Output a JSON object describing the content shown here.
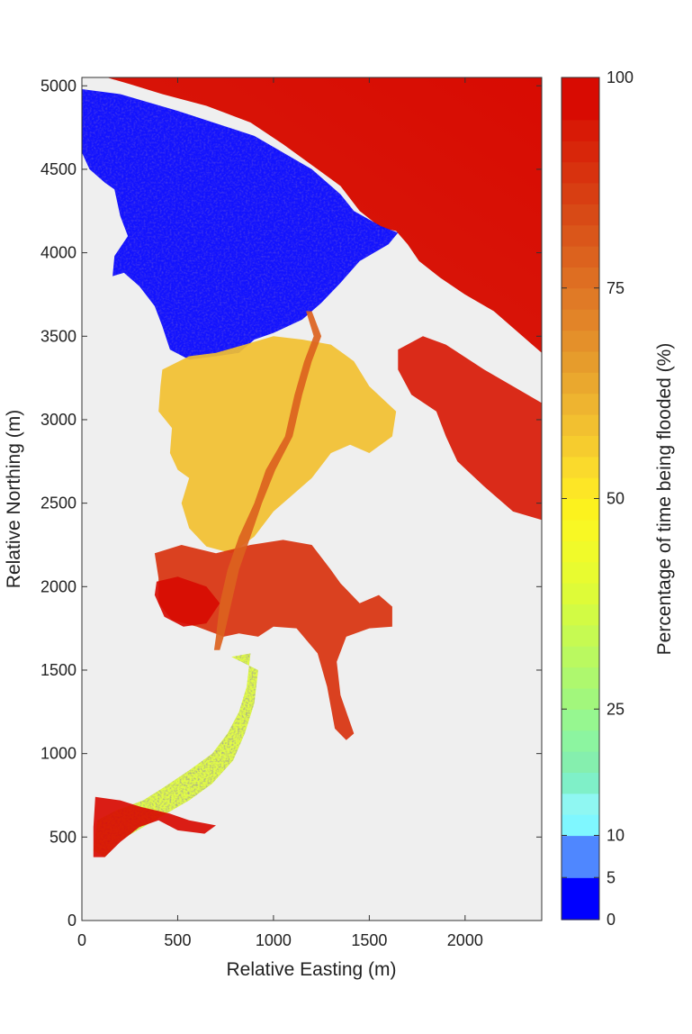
{
  "chart_data": {
    "type": "heatmap",
    "title": "",
    "xlabel": "Relative Easting (m)",
    "ylabel": "Relative Northing (m)",
    "xlim": [
      0,
      2400
    ],
    "ylim": [
      0,
      5050
    ],
    "xticks": [
      0,
      500,
      1000,
      1500,
      2000
    ],
    "yticks": [
      0,
      500,
      1000,
      1500,
      2000,
      2500,
      3000,
      3500,
      4000,
      4500,
      5000
    ],
    "grid": false,
    "background_color": "#efefef",
    "colorbar": {
      "label": "Percentage of time being flooded (%)",
      "range": [
        0,
        100
      ],
      "tick_values": [
        0,
        5,
        10,
        25,
        50,
        75,
        100
      ],
      "levels": [
        {
          "from": 0,
          "to": 5,
          "color": "#0000ff"
        },
        {
          "from": 5,
          "to": 10,
          "color": "#4f87ff"
        },
        {
          "from": 10,
          "to": 12.5,
          "color": "#7ff7ff"
        },
        {
          "from": 12.5,
          "to": 15,
          "color": "#8ff7f2"
        },
        {
          "from": 15,
          "to": 17.5,
          "color": "#7ff0c8"
        },
        {
          "from": 17.5,
          "to": 20,
          "color": "#85efae"
        },
        {
          "from": 20,
          "to": 22.5,
          "color": "#8cf5a0"
        },
        {
          "from": 22.5,
          "to": 25,
          "color": "#96f790"
        },
        {
          "from": 25,
          "to": 27.5,
          "color": "#a2f77c"
        },
        {
          "from": 27.5,
          "to": 30,
          "color": "#aef86e"
        },
        {
          "from": 30,
          "to": 32.5,
          "color": "#baf960"
        },
        {
          "from": 32.5,
          "to": 35,
          "color": "#c6fa52"
        },
        {
          "from": 35,
          "to": 37.5,
          "color": "#d2fb44"
        },
        {
          "from": 37.5,
          "to": 40,
          "color": "#defb38"
        },
        {
          "from": 40,
          "to": 42.5,
          "color": "#e8fb30"
        },
        {
          "from": 42.5,
          "to": 45,
          "color": "#f0fa2a"
        },
        {
          "from": 45,
          "to": 47.5,
          "color": "#f8f824"
        },
        {
          "from": 47.5,
          "to": 50,
          "color": "#fcf21e"
        },
        {
          "from": 50,
          "to": 52.5,
          "color": "#fde626"
        },
        {
          "from": 52.5,
          "to": 55,
          "color": "#fada2c"
        },
        {
          "from": 55,
          "to": 57.5,
          "color": "#f6cc2e"
        },
        {
          "from": 57.5,
          "to": 60,
          "color": "#f2c030"
        },
        {
          "from": 60,
          "to": 62.5,
          "color": "#eeb430"
        },
        {
          "from": 62.5,
          "to": 65,
          "color": "#eaa82e"
        },
        {
          "from": 65,
          "to": 67.5,
          "color": "#e69c2c"
        },
        {
          "from": 67.5,
          "to": 70,
          "color": "#e4902a"
        },
        {
          "from": 70,
          "to": 72.5,
          "color": "#e28428"
        },
        {
          "from": 72.5,
          "to": 75,
          "color": "#e07a26"
        },
        {
          "from": 75,
          "to": 77.5,
          "color": "#de6e22"
        },
        {
          "from": 77.5,
          "to": 80,
          "color": "#dc621e"
        },
        {
          "from": 80,
          "to": 82.5,
          "color": "#da561a"
        },
        {
          "from": 82.5,
          "to": 85,
          "color": "#d84a16"
        },
        {
          "from": 85,
          "to": 87.5,
          "color": "#d83e12"
        },
        {
          "from": 87.5,
          "to": 90,
          "color": "#d8320e"
        },
        {
          "from": 90,
          "to": 92.5,
          "color": "#d8260a"
        },
        {
          "from": 92.5,
          "to": 95,
          "color": "#d81a06"
        },
        {
          "from": 95,
          "to": 100,
          "color": "#d80b02"
        }
      ]
    },
    "regions": [
      {
        "name": "sea",
        "value": 100,
        "outline": [
          [
            130,
            5050
          ],
          [
            2400,
            5050
          ],
          [
            2400,
            3400
          ],
          [
            2300,
            3500
          ],
          [
            2150,
            3650
          ],
          [
            2000,
            3750
          ],
          [
            1870,
            3850
          ],
          [
            1760,
            3950
          ],
          [
            1700,
            4050
          ],
          [
            1640,
            4130
          ],
          [
            1560,
            4150
          ],
          [
            1450,
            4250
          ],
          [
            1350,
            4400
          ],
          [
            1230,
            4500
          ],
          [
            1050,
            4650
          ],
          [
            880,
            4780
          ],
          [
            650,
            4880
          ],
          [
            420,
            4950
          ],
          [
            250,
            5010
          ]
        ]
      },
      {
        "name": "marsh-upper",
        "value": 3,
        "outline": [
          [
            0,
            4980
          ],
          [
            200,
            4950
          ],
          [
            500,
            4850
          ],
          [
            900,
            4700
          ],
          [
            1200,
            4500
          ],
          [
            1350,
            4350
          ],
          [
            1420,
            4250
          ],
          [
            1560,
            4160
          ],
          [
            1650,
            4120
          ],
          [
            1600,
            4050
          ],
          [
            1450,
            3950
          ],
          [
            1350,
            3820
          ],
          [
            1250,
            3700
          ],
          [
            1150,
            3600
          ],
          [
            1000,
            3520
          ],
          [
            900,
            3480
          ],
          [
            820,
            3400
          ],
          [
            700,
            3380
          ],
          [
            560,
            3360
          ],
          [
            460,
            3420
          ],
          [
            420,
            3560
          ],
          [
            380,
            3680
          ],
          [
            300,
            3800
          ],
          [
            220,
            3880
          ],
          [
            160,
            3860
          ],
          [
            170,
            3980
          ],
          [
            240,
            4100
          ],
          [
            200,
            4220
          ],
          [
            170,
            4380
          ],
          [
            120,
            4420
          ],
          [
            40,
            4500
          ],
          [
            0,
            4600
          ]
        ]
      },
      {
        "name": "marsh-middle",
        "value": 60,
        "outline": [
          [
            420,
            3300
          ],
          [
            560,
            3380
          ],
          [
            700,
            3400
          ],
          [
            850,
            3450
          ],
          [
            1000,
            3500
          ],
          [
            1150,
            3480
          ],
          [
            1300,
            3450
          ],
          [
            1420,
            3350
          ],
          [
            1500,
            3200
          ],
          [
            1640,
            3050
          ],
          [
            1620,
            2900
          ],
          [
            1500,
            2800
          ],
          [
            1400,
            2850
          ],
          [
            1300,
            2800
          ],
          [
            1200,
            2650
          ],
          [
            1100,
            2550
          ],
          [
            1000,
            2450
          ],
          [
            900,
            2300
          ],
          [
            780,
            2200
          ],
          [
            650,
            2240
          ],
          [
            560,
            2350
          ],
          [
            520,
            2500
          ],
          [
            560,
            2650
          ],
          [
            500,
            2700
          ],
          [
            460,
            2800
          ],
          [
            470,
            2950
          ],
          [
            400,
            3050
          ],
          [
            410,
            3200
          ]
        ]
      },
      {
        "name": "marsh-lower",
        "value": 90,
        "outline": [
          [
            380,
            2200
          ],
          [
            520,
            2250
          ],
          [
            700,
            2200
          ],
          [
            880,
            2250
          ],
          [
            1050,
            2280
          ],
          [
            1200,
            2250
          ],
          [
            1300,
            2100
          ],
          [
            1350,
            2020
          ],
          [
            1450,
            1900
          ],
          [
            1550,
            1950
          ],
          [
            1620,
            1880
          ],
          [
            1620,
            1760
          ],
          [
            1500,
            1750
          ],
          [
            1380,
            1700
          ],
          [
            1330,
            1550
          ],
          [
            1350,
            1350
          ],
          [
            1420,
            1120
          ],
          [
            1380,
            1080
          ],
          [
            1320,
            1150
          ],
          [
            1280,
            1400
          ],
          [
            1230,
            1600
          ],
          [
            1120,
            1750
          ],
          [
            1000,
            1760
          ],
          [
            920,
            1700
          ],
          [
            820,
            1720
          ],
          [
            740,
            1700
          ],
          [
            600,
            1760
          ],
          [
            470,
            1800
          ],
          [
            400,
            1900
          ],
          [
            400,
            2050
          ]
        ]
      },
      {
        "name": "western-pool",
        "value": 100,
        "outline": [
          [
            390,
            2030
          ],
          [
            500,
            2060
          ],
          [
            650,
            2000
          ],
          [
            720,
            1900
          ],
          [
            650,
            1780
          ],
          [
            530,
            1760
          ],
          [
            430,
            1820
          ],
          [
            380,
            1950
          ]
        ]
      },
      {
        "name": "lower-channel",
        "value": 40,
        "outline": [
          [
            780,
            1580
          ],
          [
            880,
            1600
          ],
          [
            860,
            1400
          ],
          [
            820,
            1250
          ],
          [
            760,
            1120
          ],
          [
            680,
            1000
          ],
          [
            560,
            900
          ],
          [
            430,
            800
          ],
          [
            320,
            720
          ],
          [
            180,
            660
          ],
          [
            80,
            600
          ],
          [
            60,
            420
          ],
          [
            120,
            380
          ],
          [
            200,
            480
          ],
          [
            320,
            560
          ],
          [
            440,
            640
          ],
          [
            560,
            720
          ],
          [
            680,
            820
          ],
          [
            790,
            960
          ],
          [
            850,
            1120
          ],
          [
            900,
            1300
          ],
          [
            920,
            1500
          ]
        ]
      },
      {
        "name": "southern-pool",
        "value": 100,
        "outline": [
          [
            70,
            740
          ],
          [
            200,
            720
          ],
          [
            310,
            680
          ],
          [
            460,
            640
          ],
          [
            560,
            600
          ],
          [
            700,
            570
          ],
          [
            640,
            520
          ],
          [
            500,
            540
          ],
          [
            400,
            600
          ],
          [
            300,
            560
          ],
          [
            200,
            470
          ],
          [
            120,
            380
          ],
          [
            60,
            380
          ],
          [
            60,
            560
          ]
        ]
      },
      {
        "name": "southeastern-ponds",
        "value": 95,
        "outline": [
          [
            1650,
            3420
          ],
          [
            1780,
            3500
          ],
          [
            1900,
            3450
          ],
          [
            2100,
            3300
          ],
          [
            2250,
            3200
          ],
          [
            2400,
            3100
          ],
          [
            2400,
            2400
          ],
          [
            2250,
            2450
          ],
          [
            2100,
            2600
          ],
          [
            1960,
            2750
          ],
          [
            1900,
            2900
          ],
          [
            1850,
            3050
          ],
          [
            1720,
            3150
          ],
          [
            1650,
            3300
          ]
        ]
      },
      {
        "name": "channel-network",
        "value": 80,
        "outline": [
          [
            1170,
            3650
          ],
          [
            1210,
            3500
          ],
          [
            1160,
            3350
          ],
          [
            1110,
            3150
          ],
          [
            1060,
            2900
          ],
          [
            960,
            2700
          ],
          [
            900,
            2500
          ],
          [
            820,
            2300
          ],
          [
            760,
            2100
          ],
          [
            720,
            1900
          ],
          [
            700,
            1700
          ],
          [
            690,
            1620
          ],
          [
            720,
            1620
          ],
          [
            740,
            1700
          ],
          [
            780,
            1900
          ],
          [
            820,
            2100
          ],
          [
            880,
            2300
          ],
          [
            940,
            2500
          ],
          [
            1010,
            2700
          ],
          [
            1100,
            2900
          ],
          [
            1150,
            3150
          ],
          [
            1200,
            3350
          ],
          [
            1250,
            3500
          ],
          [
            1200,
            3650
          ]
        ]
      }
    ]
  }
}
